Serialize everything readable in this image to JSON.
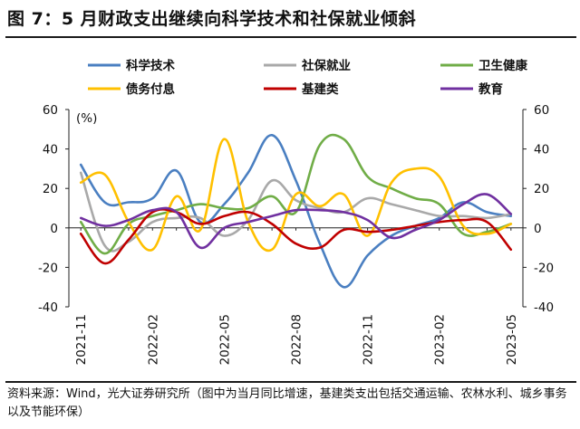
{
  "title": "图 7：5 月财政支出继续向科学技术和社保就业倾斜",
  "source_note": "资料来源：Wind，光大证券研究所（图中为当月同比增速，基建类支出包括交通运输、农林水利、城乡事务以及节能环保）",
  "chart_data": {
    "type": "line",
    "unit_label": "(%)",
    "ylim": [
      -40,
      60
    ],
    "yticks": [
      -40,
      -20,
      0,
      20,
      40,
      60
    ],
    "y2ticks": [
      -40,
      -20,
      0,
      20,
      40,
      60
    ],
    "x": [
      "2021-11",
      "2021-12",
      "2022-01",
      "2022-02",
      "2022-03",
      "2022-04",
      "2022-05",
      "2022-06",
      "2022-07",
      "2022-08",
      "2022-09",
      "2022-10",
      "2022-11",
      "2022-12",
      "2023-01",
      "2023-02",
      "2023-03",
      "2023-04",
      "2023-05"
    ],
    "xtick_labels": [
      "2021-11",
      "2022-02",
      "2022-05",
      "2022-08",
      "2022-11",
      "2023-02",
      "2023-05"
    ],
    "legend_position": "top",
    "series": [
      {
        "name": "科学技术",
        "color": "#4a7fc1",
        "values": [
          32,
          13,
          13,
          15,
          29,
          3,
          12,
          28,
          47,
          24,
          -8,
          -30,
          -14,
          -4,
          1,
          5,
          13,
          8,
          6
        ]
      },
      {
        "name": "社保就业",
        "color": "#a9a9a9",
        "values": [
          28,
          -9,
          -7,
          3,
          5,
          5,
          -4,
          4,
          24,
          14,
          10,
          8,
          15,
          12,
          9,
          6,
          6,
          5,
          7
        ]
      },
      {
        "name": "卫生健康",
        "color": "#70ad47",
        "values": [
          3,
          -13,
          2,
          6,
          9,
          12,
          10,
          10,
          16,
          8,
          42,
          45,
          26,
          20,
          15,
          12,
          -3,
          -2,
          2
        ]
      },
      {
        "name": "债务付息",
        "color": "#ffc000",
        "values": [
          23,
          27,
          3,
          -11,
          16,
          -1,
          45,
          3,
          -11,
          17,
          11,
          17,
          -4,
          23,
          30,
          26,
          1,
          -3,
          2
        ]
      },
      {
        "name": "基建类",
        "color": "#c00000",
        "values": [
          -3,
          -18,
          -6,
          8,
          8,
          2,
          6,
          8,
          2,
          -8,
          -10,
          -1,
          -2,
          -1,
          1,
          3,
          4,
          3,
          -11
        ]
      },
      {
        "name": "教育",
        "color": "#7030a0",
        "values": [
          5,
          1,
          4,
          9,
          8,
          -10,
          0,
          3,
          6,
          9,
          9,
          8,
          4,
          -5,
          -1,
          4,
          12,
          17,
          7
        ]
      }
    ]
  }
}
